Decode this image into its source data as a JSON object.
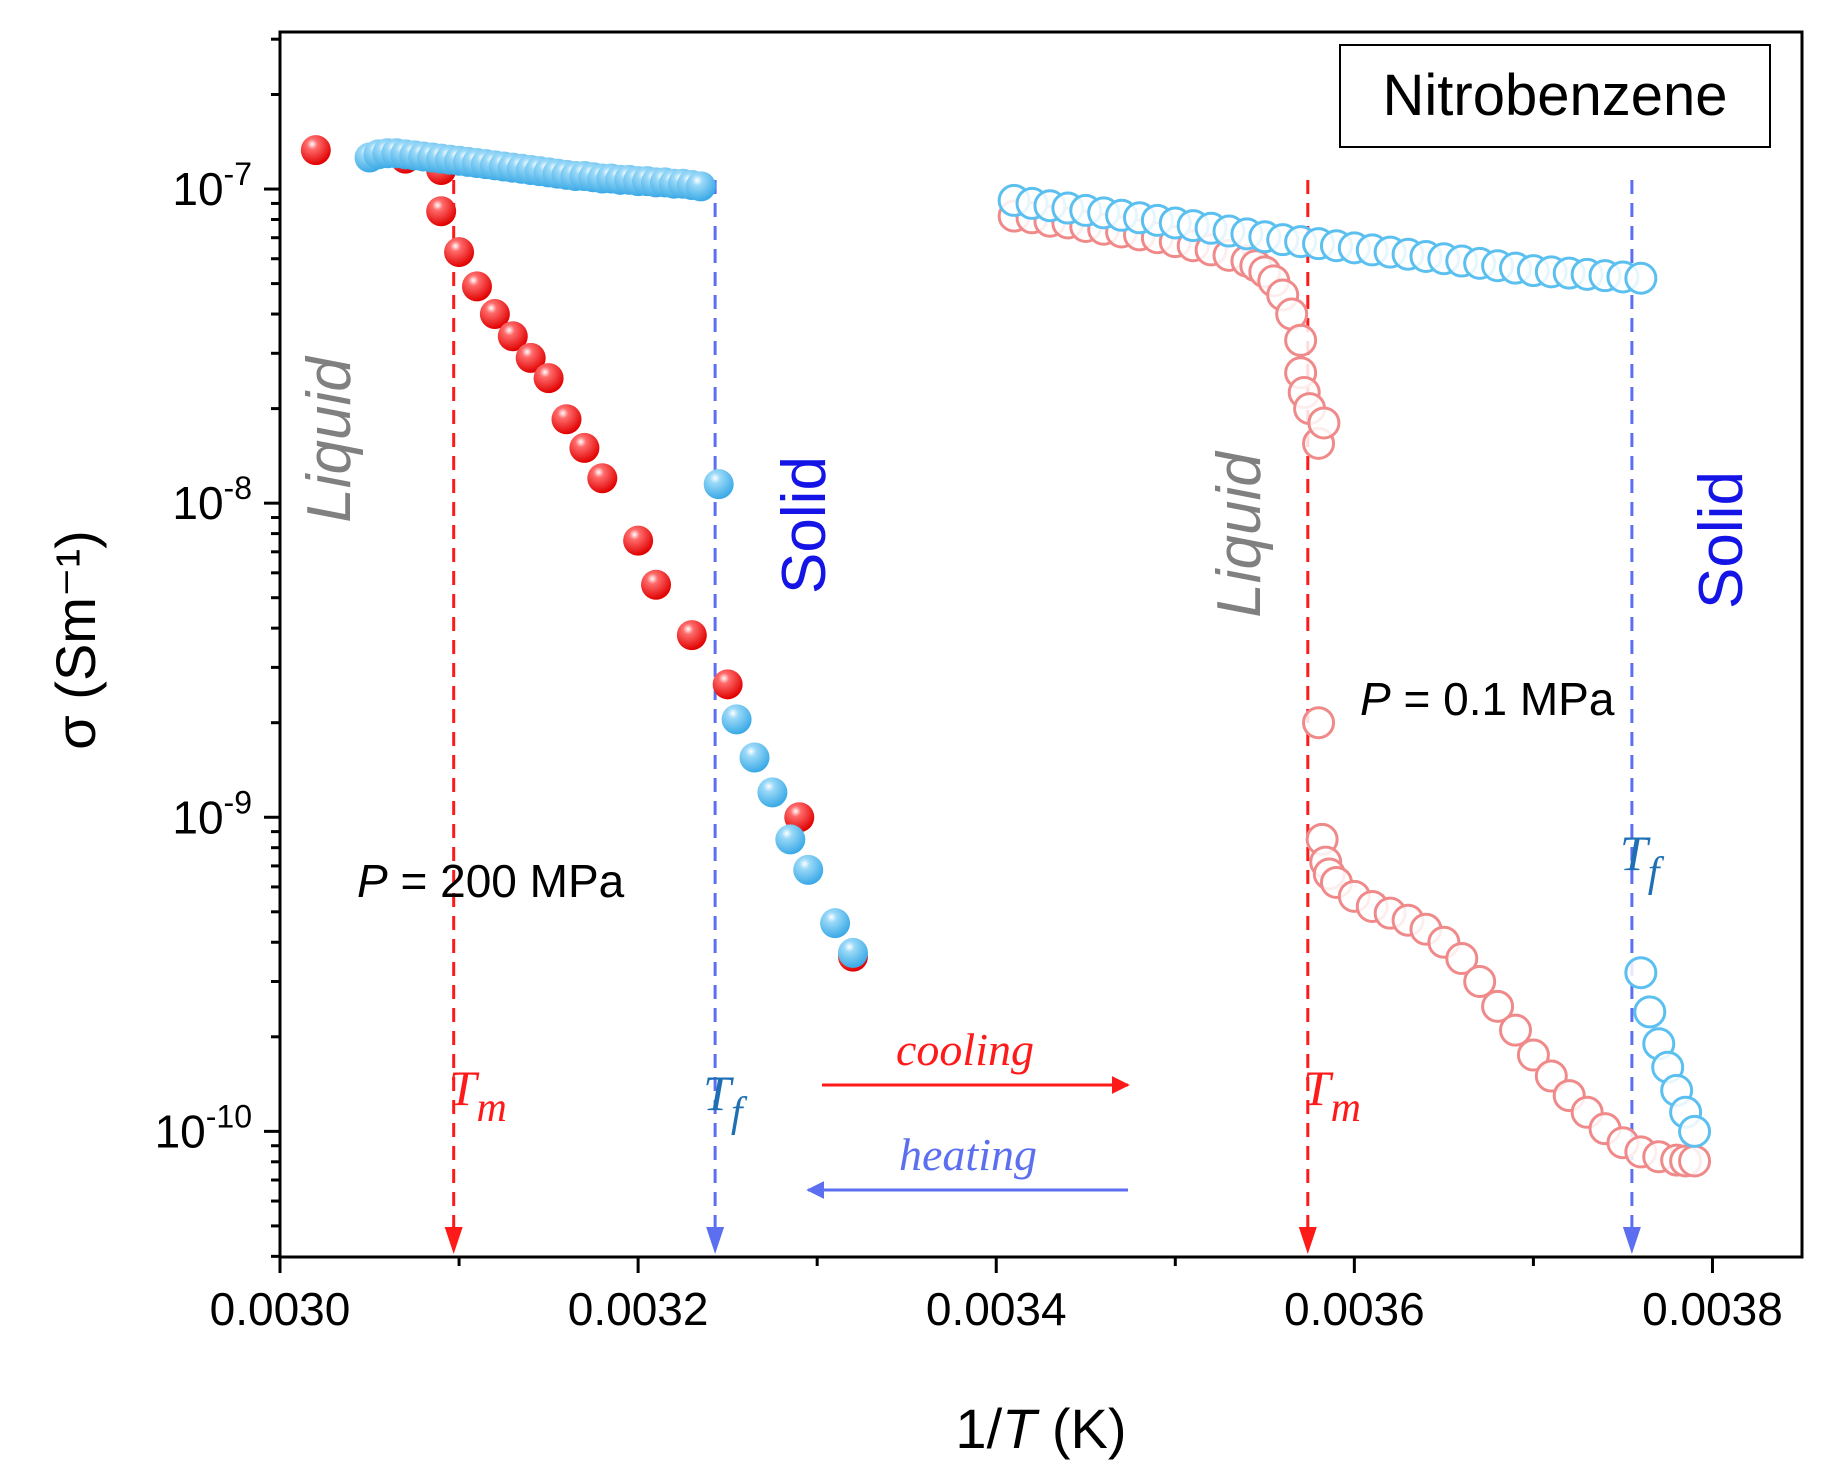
{
  "chart_data": {
    "type": "scatter",
    "title": "Nitrobenzene",
    "xlabel": "1/T  (K)",
    "ylabel": "σ  (Sm⁻¹)",
    "xlim": [
      0.003,
      0.00385
    ],
    "ylim_log10": [
      -10.4,
      -6.5
    ],
    "yscale": "log",
    "x_ticks": [
      "0.0030",
      "0.0032",
      "0.0034",
      "0.0036",
      "0.0038"
    ],
    "y_ticks": [
      {
        "base": "10",
        "exp": "-7"
      },
      {
        "base": "10",
        "exp": "-8"
      },
      {
        "base": "10",
        "exp": "-9"
      },
      {
        "base": "10",
        "exp": "-10"
      }
    ],
    "series": [
      {
        "name": "P = 200 MPa cooling",
        "style": "filled",
        "color": "#ff1a1a",
        "x": [
          0.00302,
          0.00307,
          0.00309,
          0.00309,
          0.0031,
          0.00311,
          0.00312,
          0.00313,
          0.00314,
          0.00315,
          0.00316,
          0.00317,
          0.00318,
          0.0032,
          0.00321,
          0.00323,
          0.00325,
          0.00329,
          0.00332
        ],
        "y": [
          1.33e-07,
          1.25e-07,
          1.15e-07,
          8.5e-08,
          6.3e-08,
          4.9e-08,
          4e-08,
          3.4e-08,
          2.9e-08,
          2.5e-08,
          1.85e-08,
          1.5e-08,
          1.2e-08,
          7.6e-09,
          5.5e-09,
          3.8e-09,
          2.65e-09,
          1e-09,
          3.6e-10
        ]
      },
      {
        "name": "P = 200 MPa heating",
        "style": "filled",
        "color": "#5bc0f0",
        "x": [
          0.00305,
          0.003055,
          0.00306,
          0.003065,
          0.00307,
          0.003075,
          0.00308,
          0.003085,
          0.00309,
          0.003095,
          0.0031,
          0.003105,
          0.00311,
          0.003115,
          0.00312,
          0.003125,
          0.00313,
          0.003135,
          0.00314,
          0.003145,
          0.00315,
          0.003155,
          0.00316,
          0.003165,
          0.00317,
          0.003175,
          0.00318,
          0.003185,
          0.00319,
          0.003195,
          0.0032,
          0.003205,
          0.00321,
          0.003215,
          0.00322,
          0.003225,
          0.00323,
          0.003235,
          0.003245,
          0.003255,
          0.003265,
          0.003275,
          0.003285,
          0.003295,
          0.00331,
          0.00332
        ],
        "y": [
          1.26e-07,
          1.29e-07,
          1.3e-07,
          1.3e-07,
          1.29e-07,
          1.28e-07,
          1.27e-07,
          1.26e-07,
          1.25e-07,
          1.24e-07,
          1.23e-07,
          1.22e-07,
          1.21e-07,
          1.2e-07,
          1.19e-07,
          1.18e-07,
          1.17e-07,
          1.16e-07,
          1.15e-07,
          1.14e-07,
          1.13e-07,
          1.12e-07,
          1.11e-07,
          1.1e-07,
          1.1e-07,
          1.09e-07,
          1.08e-07,
          1.08e-07,
          1.07e-07,
          1.07e-07,
          1.06e-07,
          1.06e-07,
          1.05e-07,
          1.05e-07,
          1.04e-07,
          1.04e-07,
          1.03e-07,
          1.02e-07,
          1.15e-08,
          2.05e-09,
          1.55e-09,
          1.2e-09,
          8.5e-10,
          6.8e-10,
          4.6e-10,
          3.7e-10
        ]
      },
      {
        "name": "P = 0.1 MPa cooling",
        "style": "open",
        "color": "#f08a8a",
        "x": [
          0.00341,
          0.00342,
          0.00343,
          0.00344,
          0.00345,
          0.00346,
          0.00347,
          0.00348,
          0.00349,
          0.0035,
          0.00351,
          0.00352,
          0.00353,
          0.00354,
          0.003545,
          0.00355,
          0.003555,
          0.00356,
          0.003565,
          0.00357,
          0.00357,
          0.003572,
          0.003575,
          0.00358,
          0.003583,
          0.00358,
          0.003582,
          0.003584,
          0.003586,
          0.00359,
          0.0036,
          0.00361,
          0.00362,
          0.00363,
          0.00364,
          0.00365,
          0.00366,
          0.00367,
          0.00368,
          0.00369,
          0.0037,
          0.00371,
          0.00372,
          0.00373,
          0.00374,
          0.00375,
          0.00376,
          0.00377,
          0.00378,
          0.003785,
          0.00379
        ],
        "y": [
          8.2e-08,
          8.1e-08,
          7.9e-08,
          7.8e-08,
          7.6e-08,
          7.45e-08,
          7.3e-08,
          7.15e-08,
          7e-08,
          6.8e-08,
          6.6e-08,
          6.4e-08,
          6.15e-08,
          5.9e-08,
          5.7e-08,
          5.45e-08,
          5.1e-08,
          4.6e-08,
          4e-08,
          3.3e-08,
          2.6e-08,
          2.25e-08,
          2e-08,
          1.55e-08,
          1.8e-08,
          2e-09,
          8.5e-10,
          7.2e-10,
          6.6e-10,
          6.2e-10,
          5.6e-10,
          5.2e-10,
          4.95e-10,
          4.7e-10,
          4.4e-10,
          4e-10,
          3.55e-10,
          3e-10,
          2.5e-10,
          2.1e-10,
          1.75e-10,
          1.5e-10,
          1.3e-10,
          1.15e-10,
          1.02e-10,
          9.2e-11,
          8.6e-11,
          8.3e-11,
          8.1e-11,
          8.05e-11,
          8.05e-11
        ]
      },
      {
        "name": "P = 0.1 MPa heating",
        "style": "open",
        "color": "#5bc0f0",
        "x": [
          0.00341,
          0.00342,
          0.00343,
          0.00344,
          0.00345,
          0.00346,
          0.00347,
          0.00348,
          0.00349,
          0.0035,
          0.00351,
          0.00352,
          0.00353,
          0.00354,
          0.00355,
          0.00356,
          0.00357,
          0.00358,
          0.00359,
          0.0036,
          0.00361,
          0.00362,
          0.00363,
          0.00364,
          0.00365,
          0.00366,
          0.00367,
          0.00368,
          0.00369,
          0.0037,
          0.00371,
          0.00372,
          0.00373,
          0.00374,
          0.00375,
          0.00376,
          0.00376,
          0.003765,
          0.00377,
          0.003775,
          0.00378,
          0.003785,
          0.00379
        ],
        "y": [
          9.2e-08,
          9e-08,
          8.85e-08,
          8.7e-08,
          8.55e-08,
          8.4e-08,
          8.25e-08,
          8.1e-08,
          7.95e-08,
          7.8e-08,
          7.65e-08,
          7.5e-08,
          7.35e-08,
          7.2e-08,
          7.05e-08,
          6.9e-08,
          6.8e-08,
          6.7e-08,
          6.6e-08,
          6.5e-08,
          6.4e-08,
          6.3e-08,
          6.2e-08,
          6.1e-08,
          6e-08,
          5.9e-08,
          5.8e-08,
          5.7e-08,
          5.6e-08,
          5.5e-08,
          5.45e-08,
          5.4e-08,
          5.35e-08,
          5.3e-08,
          5.25e-08,
          5.2e-08,
          3.2e-10,
          2.4e-10,
          1.9e-10,
          1.6e-10,
          1.35e-10,
          1.15e-10,
          1e-10
        ]
      }
    ],
    "vlines": [
      {
        "x": 0.003097,
        "color": "#ff1a1a",
        "label_base": "T",
        "label_sub": "m"
      },
      {
        "x": 0.003243,
        "color": "#5b6ff0",
        "label_base": "T",
        "label_sub": "f"
      },
      {
        "x": 0.003574,
        "color": "#ff1a1a",
        "label_base": "T",
        "label_sub": "m"
      },
      {
        "x": 0.003755,
        "color": "#5b6ff0",
        "label_base": "T",
        "label_sub": "f"
      }
    ],
    "annotations": {
      "liquid_label": "Liquid",
      "solid_label": "Solid",
      "p200": {
        "var": "P",
        "rest": " = 200 MPa"
      },
      "p01": {
        "var": "P",
        "rest": " = 0.1 MPa"
      },
      "cooling": "cooling",
      "heating": "heating"
    },
    "colors": {
      "red": "#ff1a1a",
      "blue_line": "#5b6ff0",
      "blue_dot": "#5bc0f0",
      "pink": "#f08a8a",
      "liquid_text": "#808080",
      "solid_text": "#1414e6",
      "tf_text": "#1f6fb5"
    }
  }
}
